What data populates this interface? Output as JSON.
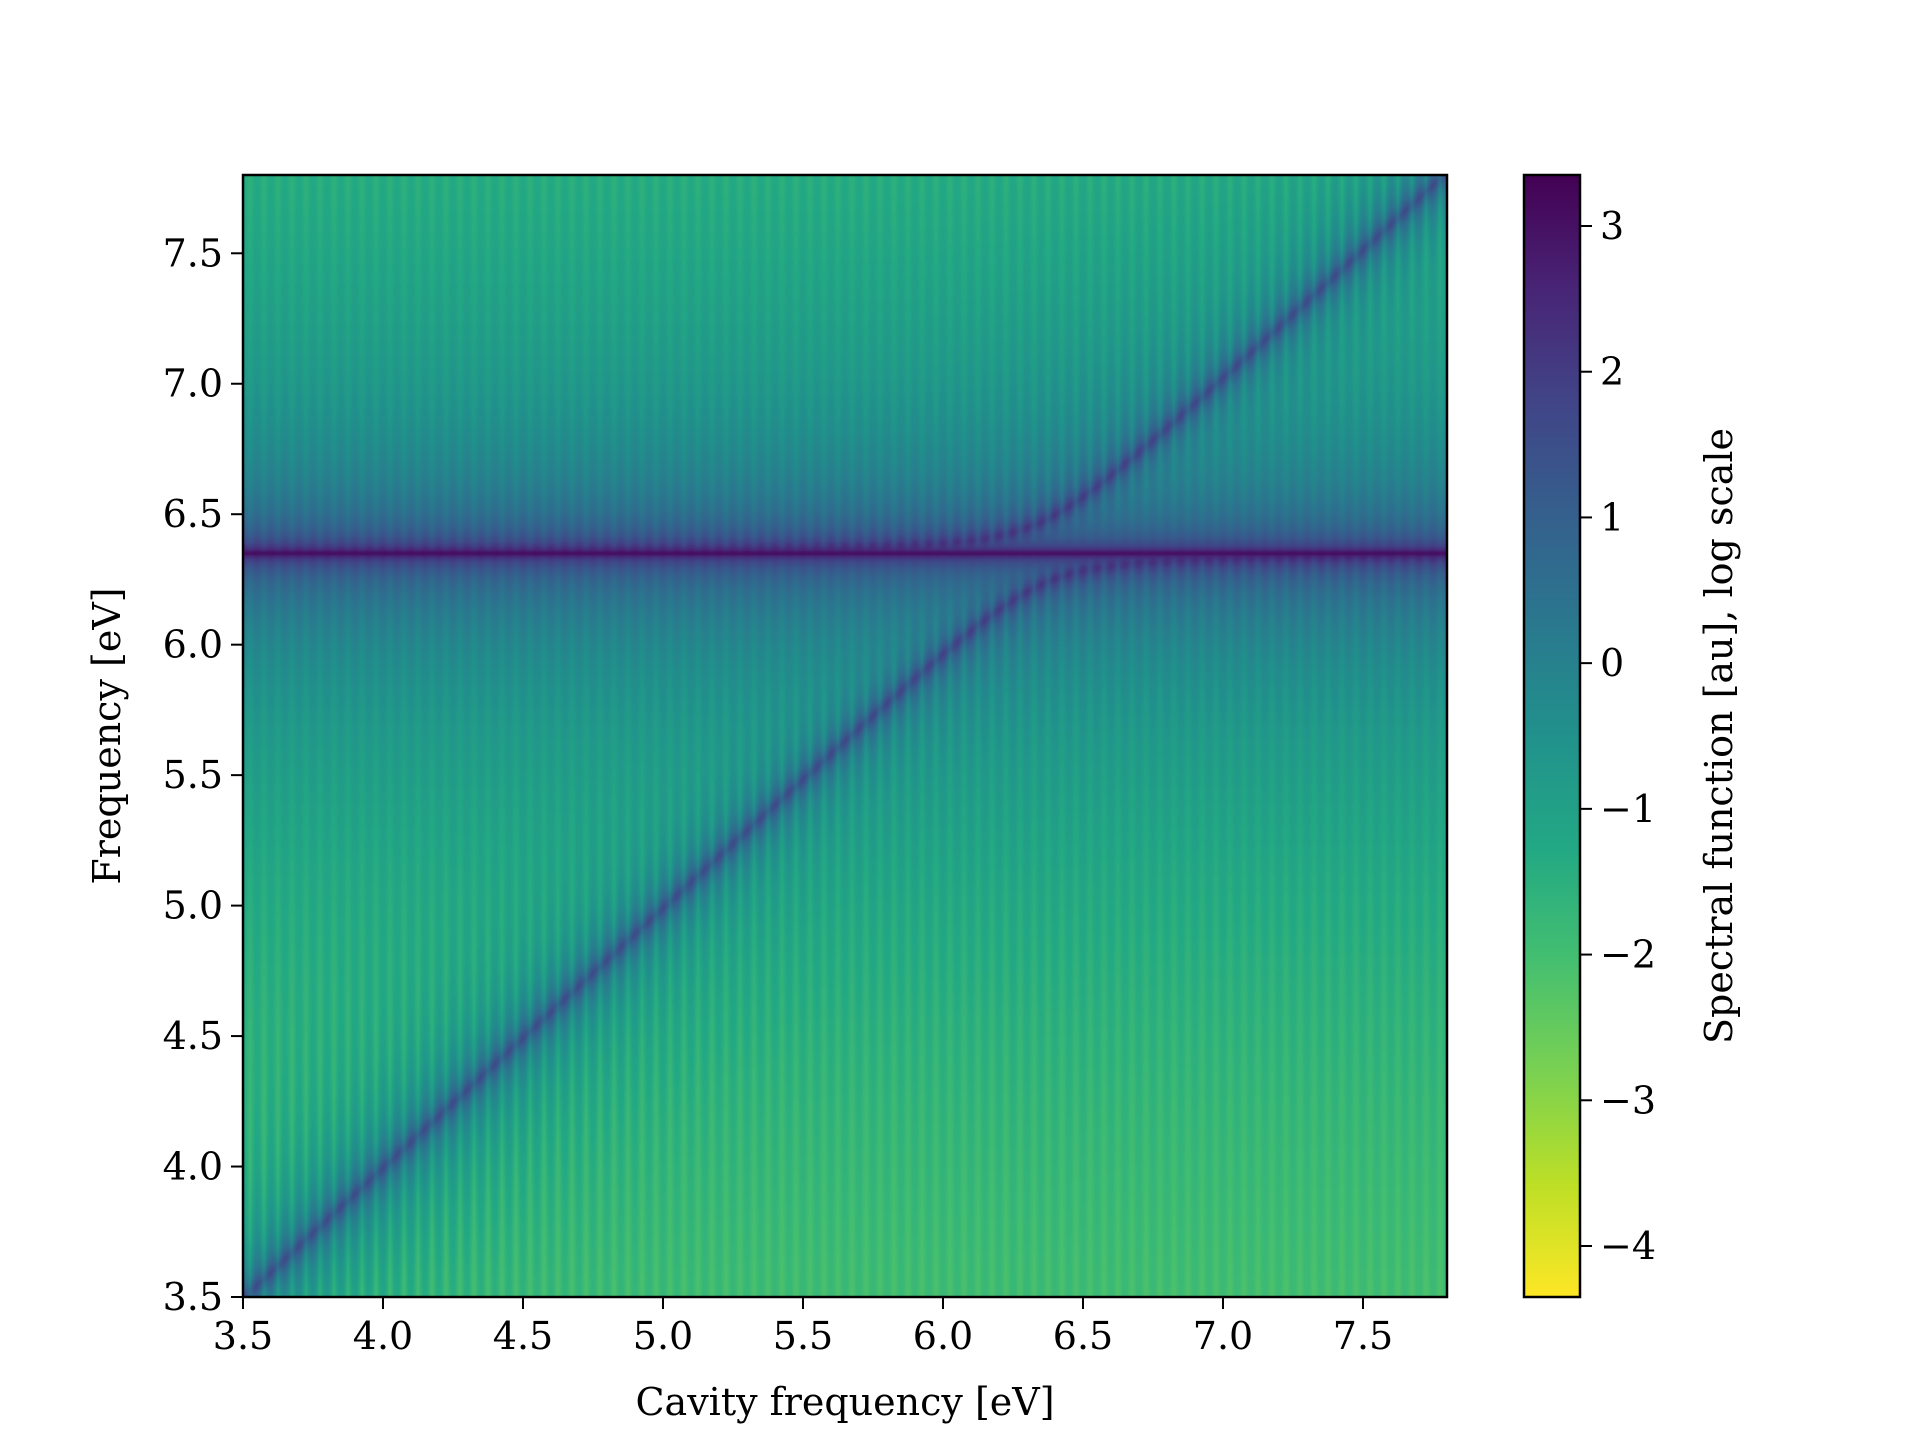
{
  "chart_data": {
    "type": "heatmap",
    "title": "",
    "xlabel": "Cavity frequency [eV]",
    "ylabel": "Frequency [eV]",
    "xlim": [
      3.5,
      7.8
    ],
    "ylim": [
      3.5,
      7.8
    ],
    "xticks": [
      "3.5",
      "4.0",
      "4.5",
      "5.0",
      "5.5",
      "6.0",
      "6.5",
      "7.0",
      "7.5"
    ],
    "yticks": [
      "3.5",
      "4.0",
      "4.5",
      "5.0",
      "5.5",
      "6.0",
      "6.5",
      "7.0",
      "7.5"
    ],
    "colormap": "viridis_r",
    "colorbar": {
      "label": "Spectral function [au], log scale",
      "range": [
        -4.35,
        3.35
      ],
      "ticks": [
        "3",
        "2",
        "1",
        "0",
        "−1",
        "−2",
        "−3",
        "−4"
      ],
      "tick_values": [
        3,
        2,
        1,
        0,
        -1,
        -2,
        -3,
        -4
      ]
    },
    "features": {
      "exciton_line_eV": 6.35,
      "upper_polariton": "follows 6.35 eV at low cavity frequency, anticrosses near 6.35 eV and continues along the diagonal above it",
      "lower_polariton": "follows the diagonal y = x from 3.5 eV, bends and saturates just below 6.35 eV",
      "coupling_half_splitting_eV": 0.12
    },
    "grid": false,
    "legend": "none"
  }
}
